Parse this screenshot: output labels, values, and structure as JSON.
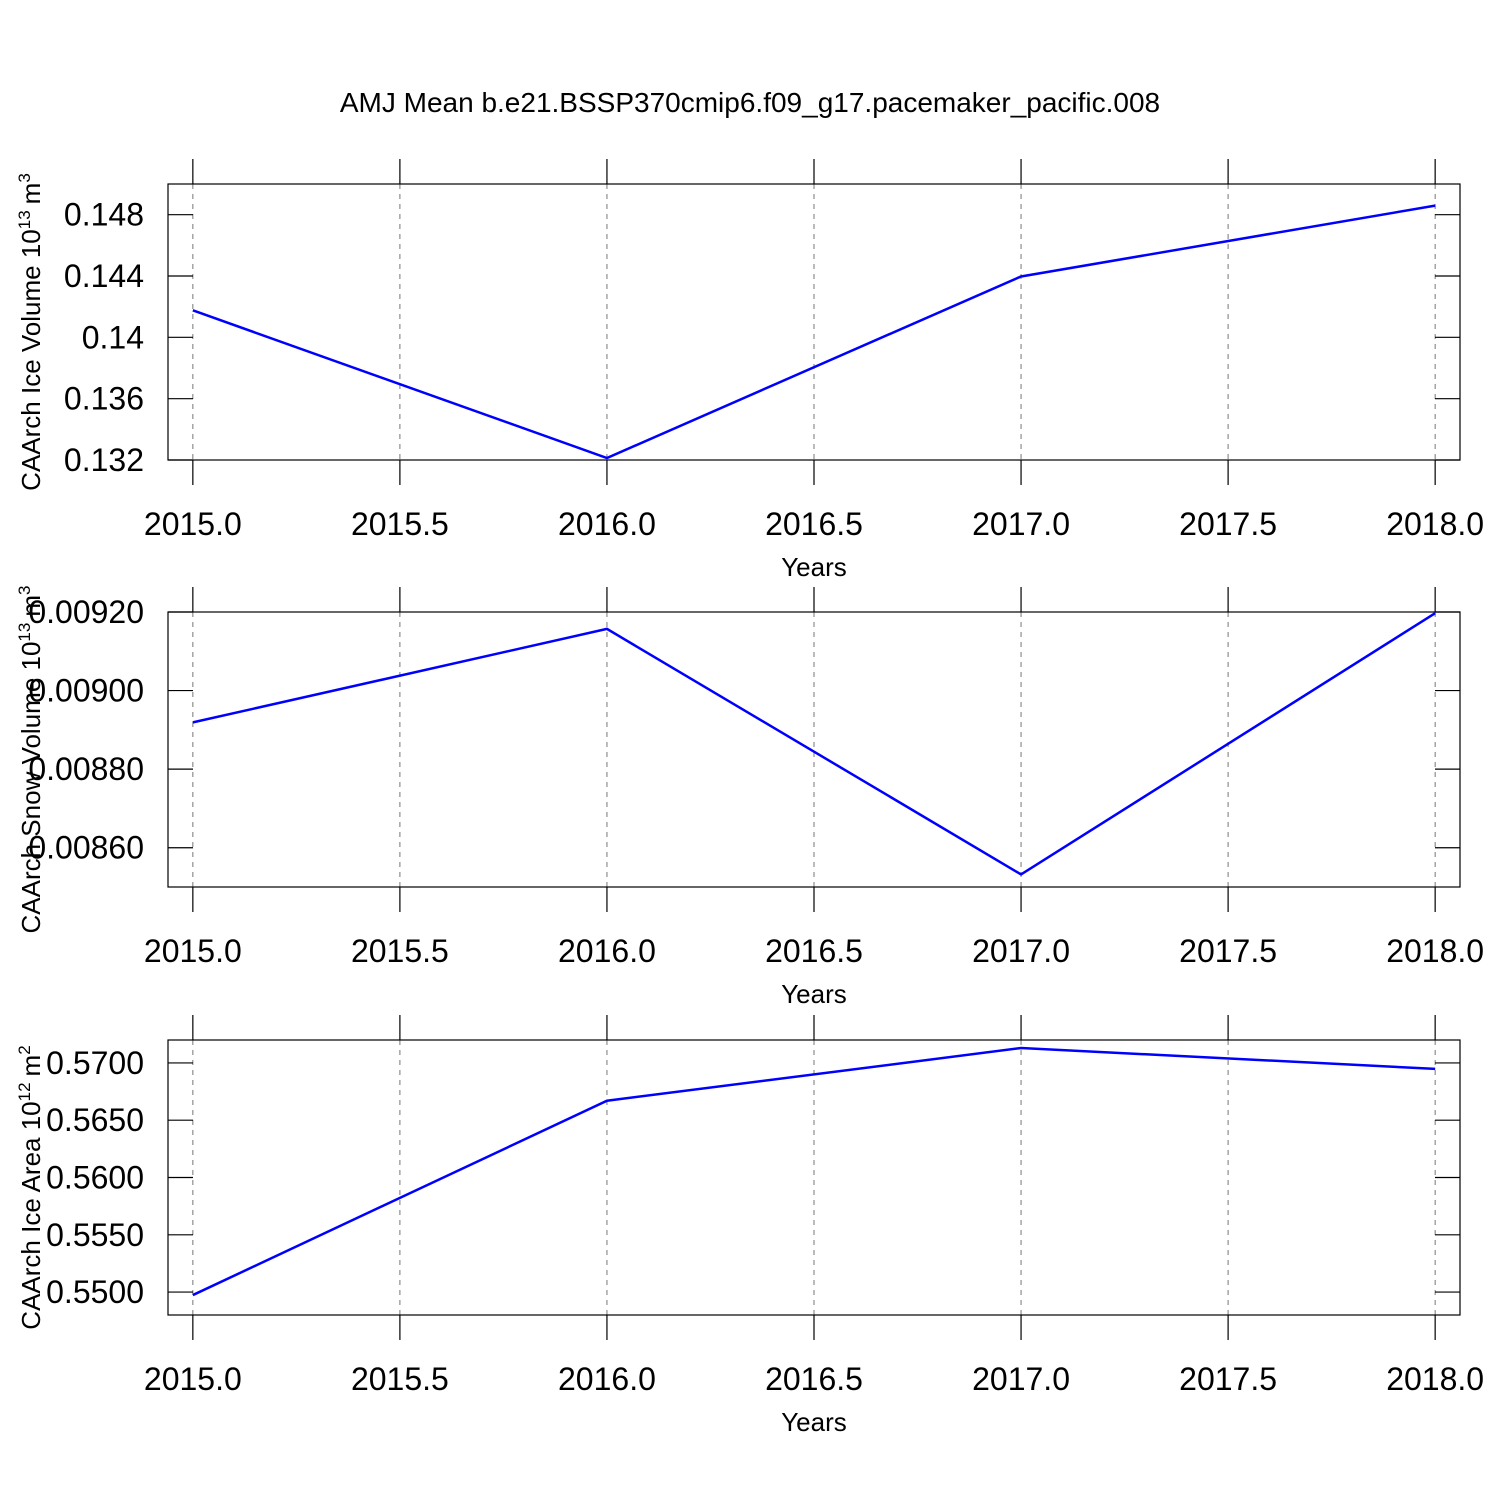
{
  "chart_data": [
    {
      "type": "line",
      "title": "AMJ Mean b.e21.BSSP370cmip6.f09_g17.pacemaker_pacific.008",
      "xlabel": "Years",
      "ylabel": "CAArch Ice Volume 10",
      "ylabel_exp": "13",
      "ylabel_unit": "m",
      "ylabel_unit_exp": "3",
      "x": [
        2015,
        2016,
        2017,
        2018
      ],
      "series": [
        {
          "color": "#0000ff",
          "values": [
            0.14176,
            0.13213,
            0.14397,
            0.14859
          ]
        }
      ],
      "xlim": [
        2014.94,
        2018.06
      ],
      "xticks": [
        {
          "value": 2015,
          "label": "2015.0"
        },
        {
          "value": 2015.5,
          "label": "2015.5"
        },
        {
          "value": 2016,
          "label": "2016.0"
        },
        {
          "value": 2016.5,
          "label": "2016.5"
        },
        {
          "value": 2017,
          "label": "2017.0"
        },
        {
          "value": 2017.5,
          "label": "2017.5"
        },
        {
          "value": 2018,
          "label": "2018.0"
        }
      ],
      "ylim": [
        0.132,
        0.15
      ],
      "yticks": [
        0.132,
        0.136,
        0.14,
        0.144,
        0.148
      ],
      "grid": true
    },
    {
      "type": "line",
      "xlabel": "Years",
      "ylabel": "CAArch Snow Volume 10",
      "ylabel_exp": "13",
      "ylabel_unit": "m",
      "ylabel_unit_exp": "3",
      "x": [
        2015,
        2016,
        2017,
        2018
      ],
      "series": [
        {
          "color": "#0000ff",
          "values": [
            0.008919,
            0.009157,
            0.008532,
            0.009197
          ]
        }
      ],
      "xlim": [
        2014.94,
        2018.06
      ],
      "xticks": [
        {
          "value": 2015,
          "label": "2015.0"
        },
        {
          "value": 2015.5,
          "label": "2015.5"
        },
        {
          "value": 2016,
          "label": "2016.0"
        },
        {
          "value": 2016.5,
          "label": "2016.5"
        },
        {
          "value": 2017,
          "label": "2017.0"
        },
        {
          "value": 2017.5,
          "label": "2017.5"
        },
        {
          "value": 2018,
          "label": "2018.0"
        }
      ],
      "ylim": [
        0.0085,
        0.0092
      ],
      "yticks": [
        {
          "value": 0.0086,
          "label": "0.00860"
        },
        {
          "value": 0.0088,
          "label": "0.00880"
        },
        {
          "value": 0.009,
          "label": "0.00900"
        },
        {
          "value": 0.0092,
          "label": "0.00920"
        }
      ],
      "grid": true
    },
    {
      "type": "line",
      "xlabel": "Years",
      "ylabel": "CAArch Ice Area 10",
      "ylabel_exp": "12",
      "ylabel_unit": "m",
      "ylabel_unit_exp": "2",
      "x": [
        2015,
        2016,
        2017,
        2018
      ],
      "series": [
        {
          "color": "#0000ff",
          "values": [
            0.54974,
            0.5667,
            0.5713,
            0.56948
          ]
        }
      ],
      "xlim": [
        2014.94,
        2018.06
      ],
      "xticks": [
        {
          "value": 2015,
          "label": "2015.0"
        },
        {
          "value": 2015.5,
          "label": "2015.5"
        },
        {
          "value": 2016,
          "label": "2016.0"
        },
        {
          "value": 2016.5,
          "label": "2016.5"
        },
        {
          "value": 2017,
          "label": "2017.0"
        },
        {
          "value": 2017.5,
          "label": "2017.5"
        },
        {
          "value": 2018,
          "label": "2018.0"
        }
      ],
      "ylim": [
        0.548,
        0.572
      ],
      "yticks": [
        {
          "value": 0.55,
          "label": "0.5500"
        },
        {
          "value": 0.555,
          "label": "0.5550"
        },
        {
          "value": 0.56,
          "label": "0.5600"
        },
        {
          "value": 0.565,
          "label": "0.5650"
        },
        {
          "value": 0.57,
          "label": "0.5700"
        }
      ],
      "grid": true
    }
  ]
}
